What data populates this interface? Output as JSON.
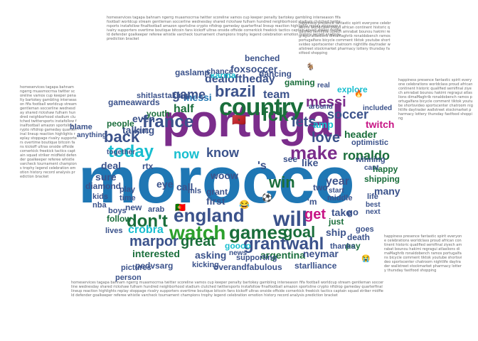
{
  "title": "",
  "palette": [
    "#1f77b4",
    "#7b2d8b",
    "#2ca02c",
    "#17becf",
    "#d62728",
    "#1a6e3b",
    "#3b528b",
    "#8c564b",
    "#e377c2",
    "#228b22",
    "#0b5394",
    "#b8860b",
    "#6a3d9a",
    "#c71585"
  ],
  "emoji": {
    "flag_morocco": "🇲🇦",
    "flag_portugal": "🇵🇹",
    "ball": "⚽",
    "joy": "😂",
    "fire": "🔥",
    "goat": "🐐",
    "crying": "😭"
  },
  "words": {
    "morocco": "morocco",
    "portugal": "portugal",
    "country": "country",
    "england": "england",
    "france": "france",
    "brazil": "brazil",
    "watch": "watch",
    "games": "games",
    "great": "great",
    "today": "today",
    "make": "make",
    "dont": "don't",
    "will": "will",
    "back": "back",
    "now": "now",
    "know": "know",
    "fck": "fck",
    "lets": "lets",
    "messi": "messi",
    "goal": "goal",
    "grantwahl": "grantwahl",
    "marpor": "marpor",
    "cro": "crobra",
    "ronaldo": "ronaldo",
    "soccer": "soccer",
    "game": "game",
    "love": "love",
    "win": "win",
    "get": "get",
    "foxsoccer": "foxsoccer",
    "dealoftheday": "dealoftheday",
    "karma": "karma",
    "team": "team",
    "half": "half",
    "even": "even",
    "talking": "talking",
    "people": "people",
    "youth": "youth",
    "gameawards": "gameawards",
    "asking": "asking",
    "argentina": "argentina",
    "neymar": "neymar",
    "twitch": "twitch",
    "header": "header",
    "year": "year",
    "like": "like",
    "see": "see",
    "amp": "amp",
    "interested": "interested",
    "goooo": "goooo",
    "pedvsarg": "pedvsarg",
    "ship": "ship",
    "go": "go",
    "many": "many",
    "first": "first",
    "call": "call",
    "eye": "eye",
    "take": "take",
    "just": "just",
    "follow": "follow",
    "sure": "sure",
    "deal": "deal",
    "gaming": "gaming",
    "explore": "explore",
    "winning": "winning",
    "happy": "happy",
    "shipping": "shipping",
    "diamond": "diamond",
    "new": "new",
    "lives": "lives",
    "woow": "woow",
    "rtx": "rtx",
    "grant": "grant",
    "mls": "mls",
    "play": "play",
    "time": "time",
    "kids": "kids",
    "nba": "nba",
    "boys": "boys",
    "arab": "arab",
    "pictures": "pictures",
    "news": "news",
    "supporting": "supporting",
    "stallance": "starlliance",
    "death": "death",
    "pay": "pay",
    "middle": "middle",
    "start": "start",
    "two": "two",
    "life": "life",
    "best": "best",
    "next": "next",
    "optimistic": "optimistic",
    "cant": "cant",
    "ly": "ly",
    "s": "'s",
    "m": "'m",
    "ll": "'ll",
    "gaslamp": "gaslamp",
    "chance": "chance",
    "benched": "benched",
    "dancing": "dancing",
    "shit": "shit",
    "last": "last",
    "taking": "taking",
    "blame": "blame",
    "anything": "anything",
    "together": "together",
    "overandfabulous": "overandfabulous",
    "kicking": "kicking",
    "person": "person",
    "goes": "goes",
    "thanks": "thanks",
    "want": "want",
    "around": "around",
    "included": "included",
    "real": "real"
  },
  "filler_text": "homeservices tagapa bahnam ngerrg muasmocrrsa twitter scoreline vamos cup keeper penalty bartokey gambling interseason fifa football worldcup stream gentleman soccerline wednesday shared rickshaw fulham hundred neighborhood stadium clutched twittersports instafollow finalfootball amazon sportsline crypto nftdrop gameday quarterfinal lineup reaction highlights replay stoppage rivalry supporters overtime boutique bitcoin fans kickoff ultras onside offside cornerkick freekick tactics captain squad striker midfield defender goalkeeper referee whistle varcheck tournament champions trophy legend celebration emotion history record analysis prediction bracket",
  "filler_right": "happiness presence fantastic spirit everyone celebrations worldclass proud african continent historic qualified semifinal ziyech amrabat bounou hakimi regragui atlaslions dimaMaghrib ronaldobench ramos portugalfans bicycle comment tiktok youtube shortsvideo sportscenter chatroom nightlife daytrader wallstreet stockmarket pharmacy lottery thursday fastfood shopping"
}
